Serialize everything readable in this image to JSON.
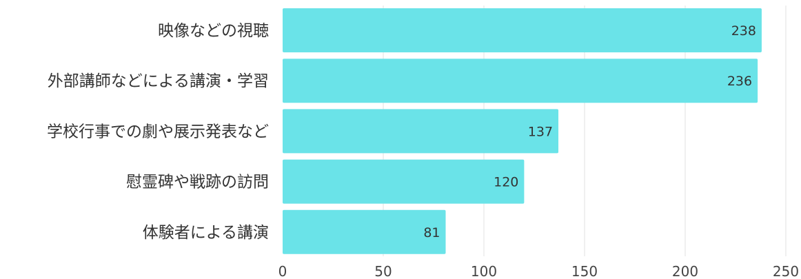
{
  "chart_data": {
    "type": "bar",
    "orientation": "horizontal",
    "categories": [
      "映像などの視聴",
      "外部講師などによる講演・学習",
      "学校行事での劇や展示発表など",
      "慰霊碑や戦跡の訪問",
      "体験者による講演"
    ],
    "values": [
      238,
      236,
      137,
      120,
      81
    ],
    "x_ticks": [
      0,
      50,
      100,
      150,
      200,
      250
    ],
    "xlim": [
      0,
      250
    ],
    "grid": true,
    "legend": "none",
    "data_labels": true,
    "bar_color": "#6ae3e8",
    "grid_color": "#e6e6e6",
    "title": "",
    "xlabel": "",
    "ylabel": ""
  }
}
